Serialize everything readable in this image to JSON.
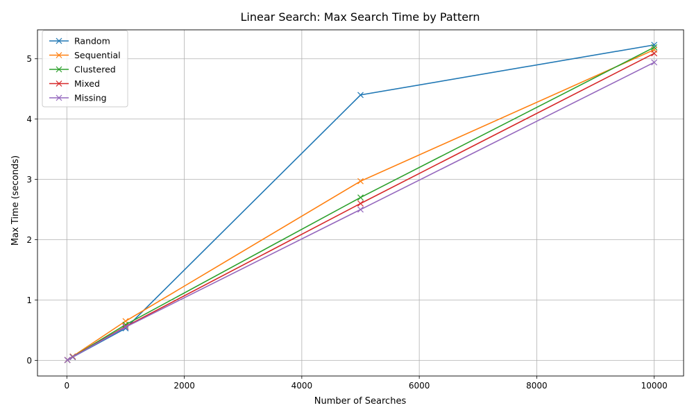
{
  "chart_data": {
    "type": "line",
    "title": "Linear Search: Max Search Time by Pattern",
    "xlabel": "Number of Searches",
    "ylabel": "Max Time (seconds)",
    "x": [
      10,
      100,
      1000,
      5000,
      10000
    ],
    "xlim": [
      -500,
      10500
    ],
    "ylim": [
      -0.26,
      5.48
    ],
    "xticks": [
      0,
      2000,
      4000,
      6000,
      8000,
      10000
    ],
    "yticks": [
      0,
      1,
      2,
      3,
      4,
      5
    ],
    "grid": true,
    "legend_position": "top-left",
    "marker": "x",
    "series": [
      {
        "name": "Random",
        "color": "#1f77b4",
        "values": [
          0.004,
          0.053,
          0.53,
          4.4,
          5.23
        ]
      },
      {
        "name": "Sequential",
        "color": "#ff7f0e",
        "values": [
          0.006,
          0.065,
          0.65,
          2.97,
          5.15
        ]
      },
      {
        "name": "Clustered",
        "color": "#2ca02c",
        "values": [
          0.005,
          0.058,
          0.59,
          2.7,
          5.19
        ]
      },
      {
        "name": "Mixed",
        "color": "#d62728",
        "values": [
          0.005,
          0.056,
          0.56,
          2.6,
          5.09
        ]
      },
      {
        "name": "Missing",
        "color": "#9467bd",
        "values": [
          0.005,
          0.055,
          0.55,
          2.5,
          4.94
        ]
      }
    ]
  }
}
